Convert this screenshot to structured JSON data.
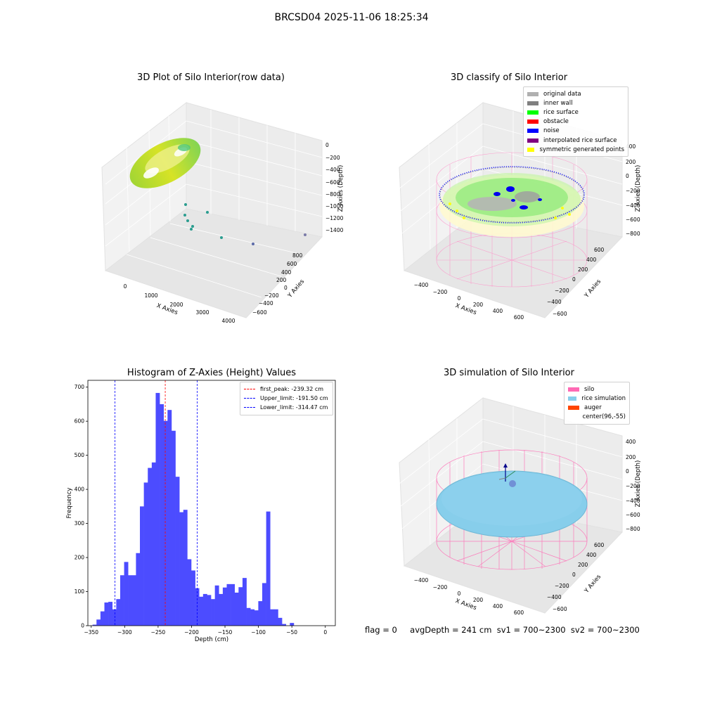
{
  "suptitle": "BRCSD04 2025-11-06 18:25:34",
  "panels": {
    "raw": {
      "title": "3D Plot of Silo Interior(row data)",
      "xlabel": "X Axies",
      "ylabel": "Y Axies",
      "zlabel": "Z Axies (Depth)",
      "x_ticks": [
        "0",
        "1000",
        "2000",
        "3000",
        "4000"
      ],
      "y_ticks": [
        "800",
        "600",
        "400",
        "200",
        "0",
        "−200",
        "−400",
        "−600"
      ],
      "z_ticks": [
        "0",
        "−200",
        "−400",
        "−600",
        "−800",
        "−1000",
        "−1200",
        "−1400"
      ]
    },
    "classify": {
      "title": "3D classify of Silo Interior",
      "xlabel": "X Axies",
      "ylabel": "Y Axies",
      "zlabel": "Z Axies (Depth)",
      "x_ticks": [
        "−400",
        "−200",
        "0",
        "200",
        "400",
        "600"
      ],
      "y_ticks": [
        "600",
        "400",
        "200",
        "0",
        "−200",
        "−400",
        "−600"
      ],
      "z_ticks": [
        "400",
        "200",
        "0",
        "−200",
        "−400",
        "−600",
        "−800"
      ],
      "legend": [
        {
          "label": "original data",
          "color": "#b0b0b0"
        },
        {
          "label": "inner wall",
          "color": "#808080"
        },
        {
          "label": "rice surface",
          "color": "#00ff00"
        },
        {
          "label": "obstacle",
          "color": "#ff0000"
        },
        {
          "label": "noise",
          "color": "#0000ff"
        },
        {
          "label": "interpolated rice surface",
          "color": "#800080"
        },
        {
          "label": "symmetric generated points",
          "color": "#ffff00"
        }
      ]
    },
    "simulation": {
      "title": "3D simulation of Silo Interior",
      "xlabel": "X Axies",
      "ylabel": "Y Axies",
      "zlabel": "Z Axies (Depth)",
      "x_ticks": [
        "−400",
        "−200",
        "0",
        "200",
        "400",
        "600"
      ],
      "y_ticks": [
        "600",
        "400",
        "200",
        "0",
        "−200",
        "−400",
        "−600"
      ],
      "z_ticks": [
        "400",
        "200",
        "0",
        "−200",
        "−400",
        "−600",
        "−800"
      ],
      "legend": [
        {
          "label": "silo",
          "color": "#ff69b4"
        },
        {
          "label": "rice simulation",
          "color": "#87ceeb"
        },
        {
          "label": "auger",
          "color": "#ff4500"
        },
        {
          "label": "center(96,-55)",
          "color": ""
        }
      ]
    }
  },
  "footer": {
    "flag": "flag = 0",
    "stats": "avgDepth = 241 cm  sv1 = 700~2300  sv2 = 700~2300"
  },
  "chart_data": {
    "type": "bar",
    "title": "Histogram of Z-Axies (Height) Values",
    "xlabel": "Depth (cm)",
    "ylabel": "Frequency",
    "xlim": [
      -355,
      15
    ],
    "ylim": [
      0,
      720
    ],
    "x_ticks": [
      "−350",
      "−300",
      "−250",
      "−200",
      "−150",
      "−100",
      "−50",
      "0"
    ],
    "y_ticks": [
      "0",
      "100",
      "200",
      "300",
      "400",
      "500",
      "600",
      "700"
    ],
    "bin_width": 5.9,
    "bin_start": -348,
    "values": [
      3,
      18,
      42,
      68,
      70,
      48,
      78,
      148,
      187,
      148,
      148,
      213,
      350,
      420,
      463,
      479,
      683,
      650,
      601,
      633,
      572,
      437,
      333,
      340,
      195,
      162,
      110,
      85,
      93,
      90,
      78,
      118,
      93,
      112,
      122,
      122,
      97,
      113,
      140,
      52,
      48,
      45,
      72,
      125,
      335,
      48,
      48,
      23,
      5,
      0,
      8
    ],
    "vlines": [
      {
        "label": "first_peak: -239.32 cm",
        "x": -239.32,
        "color": "#ff0000"
      },
      {
        "label": "Upper_limit: -191.50 cm",
        "x": -191.5,
        "color": "#0000ff"
      },
      {
        "label": "Lower_limit: -314.47 cm",
        "x": -314.47,
        "color": "#0000ff"
      }
    ],
    "bar_color": "#4c4cff",
    "legend_position": "upper right",
    "grid": false
  }
}
